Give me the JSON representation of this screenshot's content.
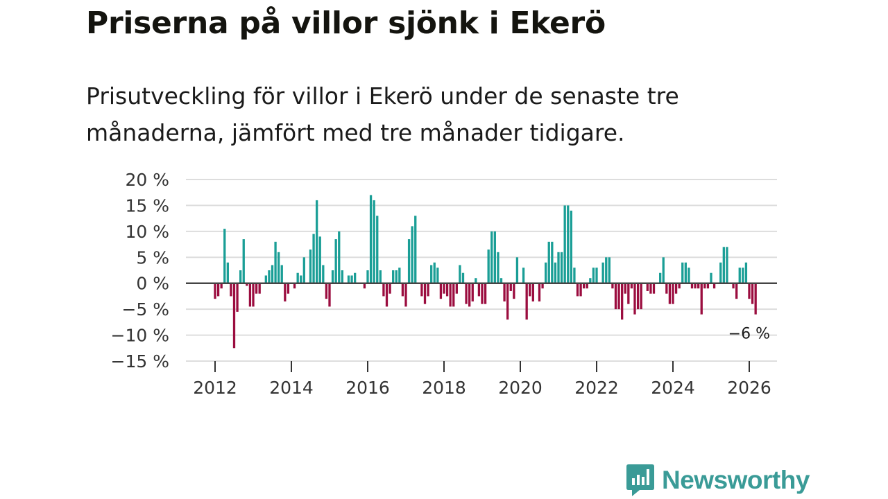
{
  "header": {
    "title": "Priserna på villor sjönk i Ekerö",
    "subtitle": "Prisutveckling för villor i Ekerö under de senaste tre månaderna, jämfört med tre månader tidigare."
  },
  "brand": {
    "name": "Newsworthy",
    "icon": "newsworthy-logo-icon"
  },
  "colors": {
    "positive": "#1a9e96",
    "negative": "#9b0d3f",
    "grid": "#dddddd",
    "zero": "#444444"
  },
  "chart_data": {
    "type": "bar",
    "title": "Priserna på villor sjönk i Ekerö",
    "xlabel": "",
    "ylabel": "",
    "ylim": [
      -15,
      20
    ],
    "y_ticks": [
      20,
      15,
      10,
      5,
      0,
      -5,
      -10,
      -15
    ],
    "y_tick_labels": [
      "20 %",
      "15 %",
      "10 %",
      "5 %",
      "0 %",
      "−5 %",
      "−10 %",
      "−15 %"
    ],
    "x_ticks": [
      2012,
      2014,
      2016,
      2018,
      2020,
      2022,
      2024,
      2026
    ],
    "x_tick_labels": [
      "2012",
      "2014",
      "2016",
      "2018",
      "2020",
      "2022",
      "2024",
      "2026"
    ],
    "start": "2012-01",
    "frequency": "monthly",
    "last_value_label": "−6 %",
    "series": [
      {
        "name": "Prisutveckling (%)",
        "values": [
          -3,
          -2.5,
          -1,
          10.5,
          4,
          -2.5,
          -12.5,
          -5.5,
          2.5,
          8.5,
          -0.5,
          -4.5,
          -4.5,
          -2,
          -2,
          0,
          1.5,
          2.5,
          3.5,
          8,
          6,
          3.5,
          -3.5,
          -2,
          0,
          -1,
          2,
          1.5,
          5,
          0,
          6.5,
          9.5,
          16,
          9,
          3.5,
          -3,
          -4.5,
          2.5,
          8.5,
          10,
          2.5,
          0,
          1.5,
          1.5,
          2,
          0,
          0,
          -1,
          2.5,
          17,
          16,
          13,
          2.5,
          -2.5,
          -4.5,
          -2,
          2.5,
          2.5,
          3,
          -2.5,
          -4.5,
          8.5,
          11,
          13,
          0,
          -2.5,
          -4,
          -2.5,
          3.5,
          4,
          3,
          -3,
          -2,
          -2.5,
          -4.5,
          -4.5,
          -2,
          3.5,
          2,
          -4,
          -4.5,
          -3.5,
          1,
          -2.5,
          -4,
          -4,
          6.5,
          10,
          10,
          6,
          1,
          -3.5,
          -7,
          -1.5,
          -3,
          5,
          0,
          3,
          -7,
          -2.5,
          -3.5,
          0,
          -3.5,
          -1,
          4,
          8,
          8,
          4,
          6,
          6,
          15,
          15,
          14,
          3,
          -2.5,
          -2.5,
          -1,
          -1,
          1,
          3,
          3,
          0,
          4,
          5,
          5,
          -1,
          -5,
          -5,
          -7,
          -2,
          -4,
          -1,
          -6,
          -5,
          -5,
          0,
          -1.5,
          -2,
          -2,
          0,
          2,
          5,
          -2,
          -4,
          -4,
          -2,
          -1,
          4,
          4,
          3,
          -1,
          -1,
          -1,
          -6,
          -1,
          -1,
          2,
          -1,
          0,
          4,
          7,
          7,
          0,
          -1,
          -3,
          3,
          3,
          4,
          -3,
          -4,
          -6
        ]
      }
    ]
  }
}
